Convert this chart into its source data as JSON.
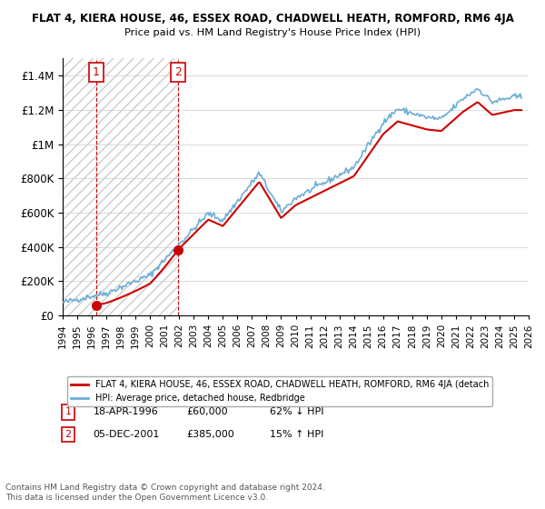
{
  "title": "FLAT 4, KIERA HOUSE, 46, ESSEX ROAD, CHADWELL HEATH, ROMFORD, RM6 4JA",
  "subtitle": "Price paid vs. HM Land Registry's House Price Index (HPI)",
  "sale1_date": 1996.3,
  "sale1_price": 60000,
  "sale2_date": 2001.93,
  "sale2_price": 385000,
  "hpi_line_color": "#6baed6",
  "price_line_color": "#cc0000",
  "background_color": "#ffffff",
  "legend_label_price": "FLAT 4, KIERA HOUSE, 46, ESSEX ROAD, CHADWELL HEATH, ROMFORD, RM6 4JA (detach",
  "legend_label_hpi": "HPI: Average price, detached house, Redbridge",
  "footer": "Contains HM Land Registry data © Crown copyright and database right 2024.\nThis data is licensed under the Open Government Licence v3.0.",
  "ylim_max": 1500000,
  "xmin": 1994,
  "xmax": 2026,
  "row1_num": "1",
  "row1_date": "18-APR-1996",
  "row1_price": "£60,000",
  "row1_hpi": "62% ↓ HPI",
  "row2_num": "2",
  "row2_date": "05-DEC-2001",
  "row2_price": "£385,000",
  "row2_hpi": "15% ↑ HPI"
}
